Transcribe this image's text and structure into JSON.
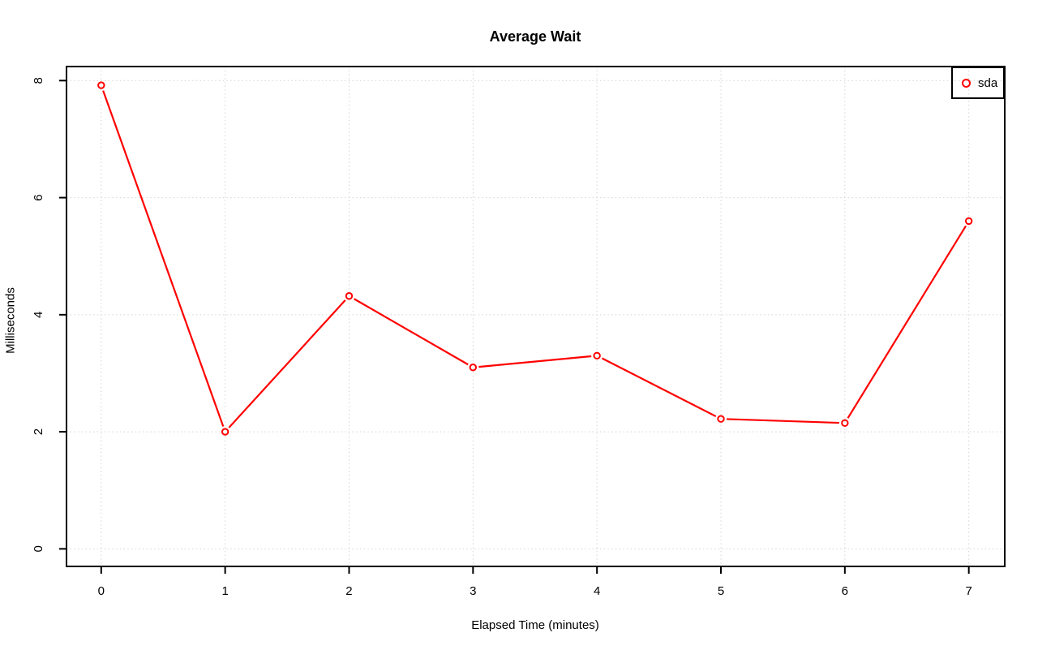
{
  "chart_data": {
    "type": "line",
    "title": "Average Wait",
    "xlabel": "Elapsed Time (minutes)",
    "ylabel": "Milliseconds",
    "x": [
      0,
      1,
      2,
      3,
      4,
      5,
      6,
      7
    ],
    "series": [
      {
        "name": "sda",
        "values": [
          7.92,
          2.0,
          4.32,
          3.1,
          3.3,
          2.22,
          2.15,
          5.6
        ],
        "color": "#ff0000",
        "marker": "open-circle",
        "line_style": "solid-with-point-gaps"
      }
    ],
    "xticks": [
      0,
      1,
      2,
      3,
      4,
      5,
      6,
      7
    ],
    "yticks": [
      0,
      2,
      4,
      6,
      8
    ],
    "xlim": [
      -0.28,
      7.29
    ],
    "ylim": [
      -0.3,
      8.24
    ],
    "grid": true,
    "grid_style": "dotted",
    "legend_position": "top-right",
    "colors": {
      "series": "#ff0000",
      "grid": "#d4d4d4",
      "axis": "#000000",
      "text": "#000000",
      "background": "#ffffff"
    }
  }
}
